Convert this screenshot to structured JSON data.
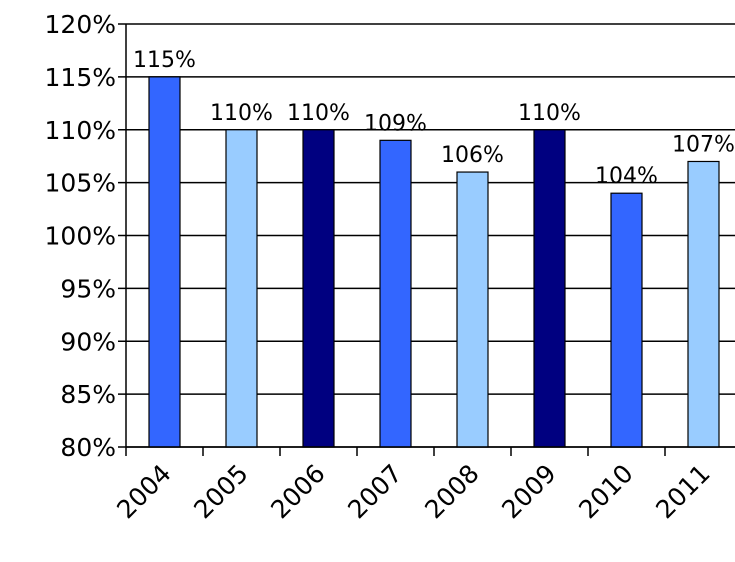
{
  "chart_data": {
    "type": "bar",
    "categories": [
      "2004",
      "2005",
      "2006",
      "2007",
      "2008",
      "2009",
      "2010",
      "2011"
    ],
    "values": [
      115,
      110,
      110,
      109,
      106,
      110,
      104,
      107
    ],
    "data_labels": [
      "115%",
      "110%",
      "110%",
      "109%",
      "106%",
      "110%",
      "104%",
      "107%"
    ],
    "bar_colors": [
      "#3366FF",
      "#99CCFF",
      "#000080",
      "#3366FF",
      "#99CCFF",
      "#000080",
      "#3366FF",
      "#99CCFF"
    ],
    "ylim": [
      80,
      120
    ],
    "y_ticks": [
      80,
      85,
      90,
      95,
      100,
      105,
      110,
      115,
      120
    ],
    "y_tick_labels": [
      "80%",
      "85%",
      "90%",
      "95%",
      "100%",
      "105%",
      "110%",
      "115%",
      "120%"
    ],
    "grid": true,
    "legend": false
  }
}
